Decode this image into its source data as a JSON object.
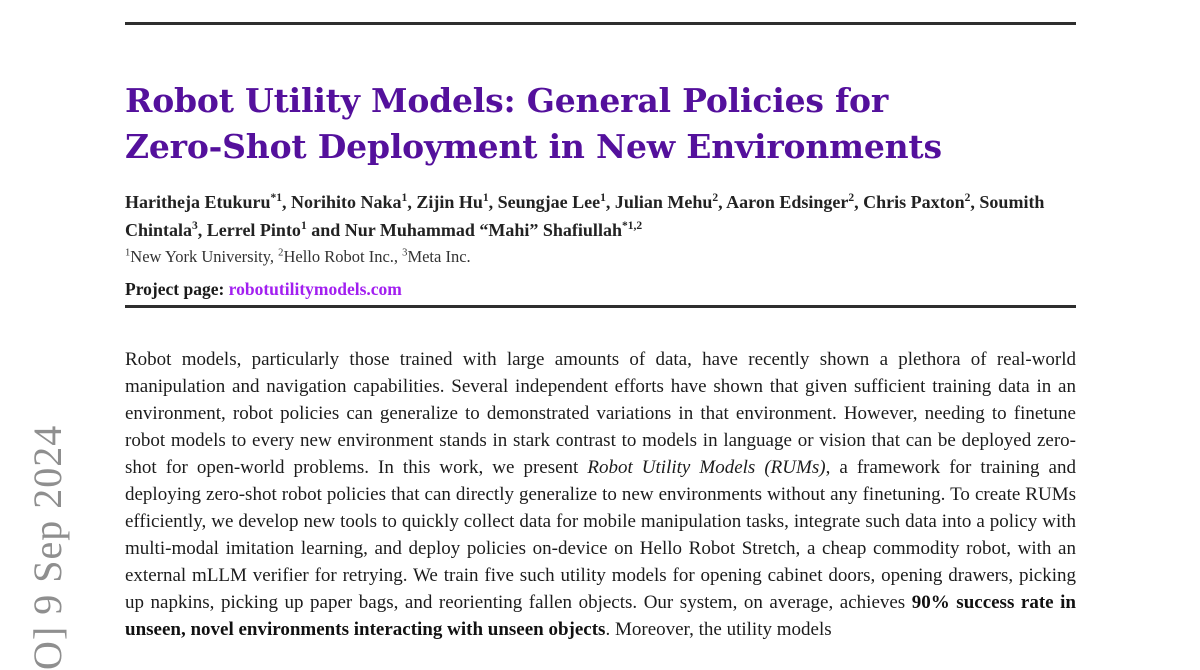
{
  "stamp": {
    "visible_text": "O] 9 Sep 2024"
  },
  "header": {
    "title_line1": "Robot Utility Models: General Policies for",
    "title_line2": "Zero-Shot Deployment in New Environments",
    "authors_rich": [
      {
        "t": "Haritheja Etukuru"
      },
      {
        "t": "*1",
        "s": "sup"
      },
      {
        "t": ", Norihito Naka"
      },
      {
        "t": "1",
        "s": "sup"
      },
      {
        "t": ", Zijin Hu"
      },
      {
        "t": "1",
        "s": "sup"
      },
      {
        "t": ", Seungjae Lee"
      },
      {
        "t": "1",
        "s": "sup"
      },
      {
        "t": ", Julian Mehu"
      },
      {
        "t": "2",
        "s": "sup"
      },
      {
        "t": ", Aaron Edsinger"
      },
      {
        "t": "2",
        "s": "sup"
      },
      {
        "t": ", Chris Paxton"
      },
      {
        "t": "2",
        "s": "sup"
      },
      {
        "t": ", Soumith Chintala"
      },
      {
        "t": "3",
        "s": "sup"
      },
      {
        "t": ", Lerrel Pinto"
      },
      {
        "t": "1",
        "s": "sup"
      },
      {
        "t": " and Nur Muhammad “Mahi” Shafiullah"
      },
      {
        "t": "*1,2",
        "s": "sup"
      }
    ],
    "affiliations_rich": [
      {
        "t": "1",
        "s": "sup"
      },
      {
        "t": "New York University, "
      },
      {
        "t": "2",
        "s": "sup"
      },
      {
        "t": "Hello Robot Inc., "
      },
      {
        "t": "3",
        "s": "sup"
      },
      {
        "t": "Meta Inc."
      }
    ],
    "project_page": {
      "label": "Project page:",
      "link": "robotutilitymodels.com"
    }
  },
  "abstract": {
    "rich": [
      {
        "t": "Robot models, particularly those trained with large amounts of data, have recently shown a plethora of real-world manipulation and navigation capabilities. Several independent efforts have shown that given sufficient training data in an environment, robot policies can generalize to demonstrated variations in that environment. However, needing to finetune robot models to every new environment stands in stark contrast to models in language or vision that can be deployed zero-shot for open-world problems. In this work, we present "
      },
      {
        "t": "Robot Utility Models (RUMs)",
        "s": "i"
      },
      {
        "t": ", a framework for training and deploying zero-shot robot policies that can directly generalize to new environments without any finetuning. To create RUMs efficiently, we develop new tools to quickly collect data for mobile manipulation tasks, integrate such data into a policy with multi-modal imitation learning, and deploy policies on-device on Hello Robot Stretch, a cheap commodity robot, with an external mLLM verifier for retrying. We train five such utility models for opening cabinet doors, opening drawers, picking up napkins, picking up paper bags, and reorienting fallen objects. Our system, on average, achieves "
      },
      {
        "t": "90% success rate in unseen, novel environments interacting with unseen objects",
        "s": "b"
      },
      {
        "t": ". Moreover, the utility models"
      }
    ]
  },
  "colors": {
    "title_purple": "#54109c",
    "link_purple": "#a21ff0",
    "stamp_gray": "#8f8f8f",
    "rule_dark": "#2e2e2e"
  }
}
